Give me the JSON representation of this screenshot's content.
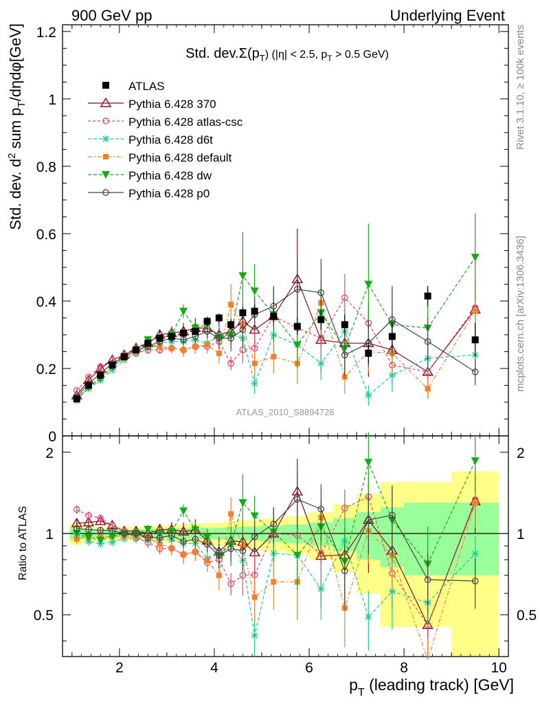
{
  "header": {
    "left": "900 GeV pp",
    "right": "Underlying Event"
  },
  "side_labels": {
    "rivet": "Rivet 3.1.10, ≥ 100k events",
    "mcplots": "mcplots.cern.ch [arXiv:1306.3436]"
  },
  "watermark": "ATLAS_2010_S8894728",
  "colors": {
    "atlas": "#000000",
    "p370": "#8b0a1a",
    "csc": "#f0406a",
    "d6t": "#1ec99a",
    "default": "#f57f2a",
    "dw": "#14ab14",
    "p0": "#444444",
    "band_inner": "#99ff99",
    "band_outer": "#ffff88"
  },
  "chart_data": [
    {
      "type": "scatter",
      "title": "Std. dev.Σ(p_T) (|η| < 2.5, p_T > 0.5 GeV)",
      "title_parts": [
        "Std. dev.",
        "Σ(p",
        "T",
        ") (|η| < 2.5, p",
        "T",
        " > 0.5 GeV)"
      ],
      "ylabel": "Std. dev. d² sum p_T/dηdφ[GeV]",
      "ylabel_parts": [
        "Std. dev. d",
        "2",
        " sum p",
        "T",
        "/dηdφ[GeV]"
      ],
      "xlim": [
        0.8,
        10.2
      ],
      "ylim": [
        0,
        1.22
      ],
      "yticks": [
        "0",
        "0.2",
        "0.4",
        "0.6",
        "0.8",
        "1",
        "1.2"
      ],
      "legend_position": "top-left",
      "x": [
        1.1,
        1.35,
        1.6,
        1.85,
        2.1,
        2.35,
        2.6,
        2.85,
        3.1,
        3.35,
        3.6,
        3.85,
        4.1,
        4.35,
        4.6,
        4.85,
        5.25,
        5.75,
        6.25,
        6.75,
        7.25,
        7.75,
        8.5,
        9.5
      ],
      "series": [
        {
          "name": "ATLAS",
          "key": "atlas",
          "marker": "square",
          "values": [
            0.11,
            0.15,
            0.18,
            0.21,
            0.235,
            0.255,
            0.275,
            0.29,
            0.295,
            0.305,
            0.31,
            0.34,
            0.35,
            0.33,
            0.365,
            0.37,
            0.355,
            0.325,
            0.345,
            0.33,
            0.245,
            0.295,
            0.415,
            0.285
          ],
          "errors": [
            0.005,
            0.005,
            0.005,
            0.005,
            0.005,
            0.006,
            0.006,
            0.007,
            0.008,
            0.009,
            0.01,
            0.012,
            0.013,
            0.015,
            0.017,
            0.02,
            0.02,
            0.025,
            0.03,
            0.03,
            0.03,
            0.04,
            0.03,
            0.05
          ]
        },
        {
          "name": "Pythia 6.428 370",
          "key": "p370",
          "marker": "triangle-open",
          "values": [
            0.12,
            0.165,
            0.2,
            0.225,
            0.24,
            0.26,
            0.275,
            0.3,
            0.305,
            0.31,
            0.32,
            0.32,
            0.3,
            0.31,
            0.34,
            0.315,
            0.355,
            0.465,
            0.285,
            0.275,
            0.275,
            0.255,
            0.19,
            0.375
          ],
          "errors": [
            0.005,
            0.005,
            0.006,
            0.007,
            0.008,
            0.01,
            0.012,
            0.015,
            0.02,
            0.025,
            0.03,
            0.03,
            0.04,
            0.04,
            0.05,
            0.06,
            0.07,
            0.15,
            0.1,
            0.1,
            0.1,
            0.1,
            0.08,
            0.09
          ]
        },
        {
          "name": "Pythia 6.428 atlas-csc",
          "key": "csc",
          "marker": "circle-open",
          "values": [
            0.135,
            0.175,
            0.205,
            0.225,
            0.24,
            0.245,
            0.255,
            0.255,
            0.26,
            0.255,
            0.265,
            0.265,
            0.28,
            0.215,
            0.255,
            0.26,
            0.355,
            0.32,
            0.29,
            0.41,
            0.335,
            0.21,
            0.19,
            0.38
          ],
          "errors": [
            0.005,
            0.006,
            0.007,
            0.008,
            0.01,
            0.01,
            0.012,
            0.012,
            0.015,
            0.02,
            0.02,
            0.02,
            0.03,
            0.02,
            0.04,
            0.05,
            0.08,
            0.1,
            0.06,
            0.07,
            0.06,
            0.05,
            0.04,
            0.05
          ]
        },
        {
          "name": "Pythia 6.428 d6t",
          "key": "d6t",
          "marker": "star",
          "values": [
            0.11,
            0.14,
            0.165,
            0.195,
            0.225,
            0.245,
            0.26,
            0.275,
            0.28,
            0.28,
            0.285,
            0.275,
            0.295,
            0.3,
            0.29,
            0.155,
            0.3,
            0.27,
            0.215,
            0.31,
            0.12,
            0.18,
            0.23,
            0.24
          ],
          "errors": [
            0.005,
            0.005,
            0.006,
            0.007,
            0.008,
            0.01,
            0.01,
            0.012,
            0.015,
            0.015,
            0.02,
            0.02,
            0.03,
            0.03,
            0.04,
            0.03,
            0.05,
            0.05,
            0.05,
            0.06,
            0.03,
            0.05,
            0.04,
            0.04
          ]
        },
        {
          "name": "Pythia 6.428 default",
          "key": "default",
          "marker": "square-filled",
          "values": [
            0.105,
            0.145,
            0.175,
            0.205,
            0.23,
            0.25,
            0.265,
            0.265,
            0.26,
            0.255,
            0.265,
            0.27,
            0.245,
            0.39,
            0.325,
            0.215,
            0.235,
            0.215,
            0.395,
            0.175,
            0.25,
            0.245,
            0.14,
            0.37
          ],
          "errors": [
            0.005,
            0.005,
            0.006,
            0.007,
            0.008,
            0.01,
            0.01,
            0.012,
            0.015,
            0.02,
            0.02,
            0.025,
            0.03,
            0.06,
            0.06,
            0.04,
            0.05,
            0.06,
            0.07,
            0.05,
            0.06,
            0.06,
            0.03,
            0.07
          ]
        },
        {
          "name": "Pythia 6.428 dw",
          "key": "dw",
          "marker": "triangle-down",
          "values": [
            0.11,
            0.145,
            0.17,
            0.205,
            0.235,
            0.255,
            0.285,
            0.29,
            0.3,
            0.37,
            0.32,
            0.33,
            0.29,
            0.3,
            0.475,
            0.43,
            0.36,
            0.27,
            0.365,
            0.26,
            0.45,
            0.33,
            0.32,
            0.53
          ],
          "errors": [
            0.005,
            0.005,
            0.006,
            0.007,
            0.008,
            0.01,
            0.012,
            0.012,
            0.015,
            0.02,
            0.02,
            0.025,
            0.03,
            0.05,
            0.13,
            0.08,
            0.08,
            0.07,
            0.08,
            0.09,
            0.18,
            0.1,
            0.12,
            0.13
          ]
        },
        {
          "name": "Pythia 6.428 p0",
          "key": "p0",
          "marker": "circle-open",
          "values": [
            0.115,
            0.155,
            0.185,
            0.215,
            0.235,
            0.255,
            0.265,
            0.28,
            0.29,
            0.285,
            0.295,
            0.31,
            0.29,
            0.29,
            0.315,
            0.36,
            0.385,
            0.435,
            0.425,
            0.24,
            0.275,
            0.345,
            0.28,
            0.19
          ],
          "errors": [
            0.005,
            0.005,
            0.006,
            0.007,
            0.008,
            0.01,
            0.01,
            0.012,
            0.015,
            0.015,
            0.02,
            0.02,
            0.03,
            0.03,
            0.05,
            0.05,
            0.06,
            0.1,
            0.1,
            0.06,
            0.07,
            0.1,
            0.07,
            0.04
          ]
        }
      ]
    },
    {
      "type": "scatter",
      "title": "",
      "ylabel": "Ratio to ATLAS",
      "xlabel": "p_T (leading track) [GeV]",
      "xlabel_parts": [
        "p",
        "T",
        " (leading track) [GeV]"
      ],
      "xlim": [
        0.8,
        10.2
      ],
      "xticks": [
        "2",
        "4",
        "6",
        "8",
        "10"
      ],
      "ylim": [
        0.35,
        2.3
      ],
      "yticks": [
        "0.5",
        "1",
        "2"
      ],
      "log_y": true,
      "bands": [
        {
          "x_lo": 0.95,
          "x_hi": 1.22,
          "inner": 0.05,
          "outer": 0.09
        },
        {
          "x_lo": 1.22,
          "x_hi": 1.47,
          "inner": 0.04,
          "outer": 0.07
        },
        {
          "x_lo": 1.47,
          "x_hi": 1.72,
          "inner": 0.035,
          "outer": 0.06
        },
        {
          "x_lo": 1.72,
          "x_hi": 1.97,
          "inner": 0.035,
          "outer": 0.06
        },
        {
          "x_lo": 1.97,
          "x_hi": 2.22,
          "inner": 0.035,
          "outer": 0.06
        },
        {
          "x_lo": 2.22,
          "x_hi": 2.47,
          "inner": 0.035,
          "outer": 0.06
        },
        {
          "x_lo": 2.47,
          "x_hi": 2.72,
          "inner": 0.035,
          "outer": 0.06
        },
        {
          "x_lo": 2.72,
          "x_hi": 2.97,
          "inner": 0.04,
          "outer": 0.07
        },
        {
          "x_lo": 2.97,
          "x_hi": 3.22,
          "inner": 0.04,
          "outer": 0.07
        },
        {
          "x_lo": 3.22,
          "x_hi": 3.47,
          "inner": 0.045,
          "outer": 0.08
        },
        {
          "x_lo": 3.47,
          "x_hi": 3.72,
          "inner": 0.05,
          "outer": 0.09
        },
        {
          "x_lo": 3.72,
          "x_hi": 3.97,
          "inner": 0.05,
          "outer": 0.09
        },
        {
          "x_lo": 3.97,
          "x_hi": 4.22,
          "inner": 0.05,
          "outer": 0.1
        },
        {
          "x_lo": 4.22,
          "x_hi": 4.47,
          "inner": 0.055,
          "outer": 0.11
        },
        {
          "x_lo": 4.47,
          "x_hi": 4.72,
          "inner": 0.06,
          "outer": 0.12
        },
        {
          "x_lo": 4.72,
          "x_hi": 5.0,
          "inner": 0.06,
          "outer": 0.12
        },
        {
          "x_lo": 5.0,
          "x_hi": 5.5,
          "inner": 0.07,
          "outer": 0.14
        },
        {
          "x_lo": 5.5,
          "x_hi": 6.0,
          "inner": 0.08,
          "outer": 0.16
        },
        {
          "x_lo": 6.0,
          "x_hi": 6.5,
          "inner": 0.1,
          "outer": 0.2
        },
        {
          "x_lo": 6.5,
          "x_hi": 7.0,
          "inner": 0.14,
          "outer": 0.28
        },
        {
          "x_lo": 7.0,
          "x_hi": 7.5,
          "inner": 0.2,
          "outer": 0.4
        },
        {
          "x_lo": 7.5,
          "x_hi": 8.0,
          "inner": 0.25,
          "outer": 0.55
        },
        {
          "x_lo": 8.0,
          "x_hi": 9.0,
          "inner": 0.3,
          "outer": 0.55
        },
        {
          "x_lo": 9.0,
          "x_hi": 10.0,
          "inner": 0.3,
          "outer": 0.7
        }
      ]
    }
  ]
}
